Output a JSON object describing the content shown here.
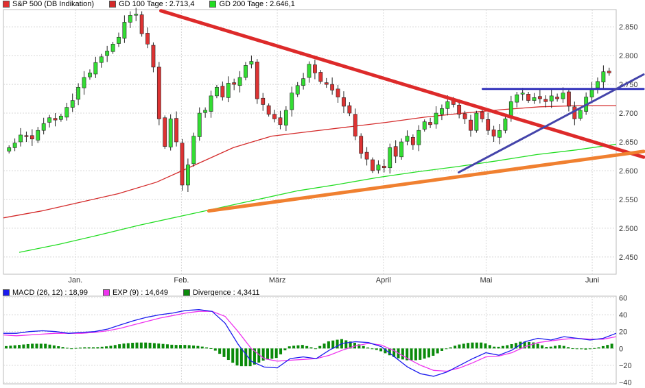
{
  "chart_data": [
    {
      "type": "candlestick",
      "legend": [
        {
          "name": "S&P 500",
          "suffix": "(DB Indikation)",
          "color": "#e03030"
        },
        {
          "name": "GD 100 Tage",
          "value": "2.713,4",
          "color": "#d42a2a"
        },
        {
          "name": "GD 200 Tage",
          "value": "2.646,1",
          "color": "#22dd22"
        }
      ],
      "ylim": [
        2420,
        2880
      ],
      "y_ticks": [
        "2.450",
        "2.500",
        "2.550",
        "2.600",
        "2.650",
        "2.700",
        "2.750",
        "2.800",
        "2.850"
      ],
      "x_ticks": [
        "Jan.",
        "Feb.",
        "März",
        "April",
        "Mai",
        "Juni"
      ],
      "trendlines": [
        {
          "name": "descending-resistance",
          "color": "#dd2a2a",
          "from": [
            "2018-01-26",
            2878
          ],
          "to": [
            "2018-06-08",
            2638
          ]
        },
        {
          "name": "ascending-support",
          "color": "#f08030",
          "from": [
            "2018-02-09",
            2530
          ],
          "to": [
            "2018-06-08",
            2627
          ]
        },
        {
          "name": "horizontal-resistance",
          "color": "#3333bb",
          "from": [
            "2018-04-30",
            2742
          ],
          "to": [
            "2018-06-08",
            2742
          ]
        },
        {
          "name": "rising-support",
          "color": "#4444aa",
          "from": [
            "2018-04-23",
            2597
          ],
          "to": [
            "2018-06-08",
            2742
          ]
        }
      ],
      "ma100_key": [
        2518,
        2530,
        2545,
        2560,
        2580,
        2610,
        2640,
        2660,
        2668,
        2676,
        2684,
        2693,
        2700,
        2706,
        2711,
        2713,
        2713
      ],
      "ma200_key": [
        2458,
        2472,
        2488,
        2505,
        2520,
        2535,
        2550,
        2565,
        2576,
        2588,
        2598,
        2607,
        2617,
        2628,
        2636,
        2646
      ],
      "closes": [
        2640,
        2648,
        2662,
        2660,
        2655,
        2670,
        2682,
        2692,
        2688,
        2695,
        2710,
        2722,
        2745,
        2762,
        2770,
        2788,
        2798,
        2808,
        2820,
        2832,
        2858,
        2870,
        2872,
        2838,
        2820,
        2780,
        2690,
        2642,
        2690,
        2650,
        2575,
        2610,
        2660,
        2700,
        2705,
        2730,
        2745,
        2728,
        2752,
        2750,
        2762,
        2783,
        2790,
        2725,
        2715,
        2698,
        2690,
        2680,
        2705,
        2735,
        2748,
        2760,
        2785,
        2770,
        2755,
        2750,
        2740,
        2728,
        2712,
        2700,
        2660,
        2630,
        2620,
        2600,
        2610,
        2605,
        2640,
        2625,
        2650,
        2660,
        2645,
        2670,
        2685,
        2680,
        2700,
        2708,
        2720,
        2715,
        2698,
        2690,
        2670,
        2700,
        2690,
        2670,
        2660,
        2670,
        2690,
        2720,
        2732,
        2735,
        2722,
        2727,
        2725,
        2720,
        2730,
        2725,
        2735,
        2712,
        2690,
        2705,
        2728,
        2742,
        2755,
        2772,
        2770
      ],
      "dates_range": [
        "2017-12-11",
        "2018-06-08"
      ]
    },
    {
      "type": "macd",
      "legend": [
        {
          "name": "MACD (26, 12)",
          "value": "18,99",
          "color": "#1a1aee"
        },
        {
          "name": "EXP (9)",
          "value": "14,649",
          "color": "#ee33ee"
        },
        {
          "name": "Divergence",
          "value": "4,3411",
          "color": "#0a8a0a"
        }
      ],
      "ylim": [
        -42,
        62
      ],
      "y_ticks": [
        "60",
        "40",
        "20",
        "0",
        "−20",
        "−40"
      ],
      "macd_key": [
        18,
        18,
        20,
        21,
        20,
        18,
        19,
        20,
        23,
        28,
        33,
        37,
        40,
        42,
        45,
        46,
        44,
        30,
        5,
        -15,
        -22,
        -23,
        -12,
        -10,
        -12,
        -2,
        6,
        8,
        7,
        2,
        -10,
        -22,
        -30,
        -33,
        -28,
        -20,
        -12,
        -5,
        -8,
        -2,
        8,
        12,
        10,
        14,
        12,
        10,
        12,
        18
      ],
      "signal_key": [
        16,
        15,
        16,
        17,
        18,
        18,
        18,
        19,
        21,
        24,
        28,
        32,
        36,
        39,
        42,
        44,
        44,
        38,
        20,
        0,
        -12,
        -15,
        -14,
        -13,
        -12,
        -8,
        -2,
        3,
        6,
        4,
        -3,
        -12,
        -20,
        -26,
        -27,
        -23,
        -17,
        -10,
        -9,
        -5,
        2,
        7,
        9,
        11,
        12,
        11,
        11,
        14
      ]
    }
  ]
}
